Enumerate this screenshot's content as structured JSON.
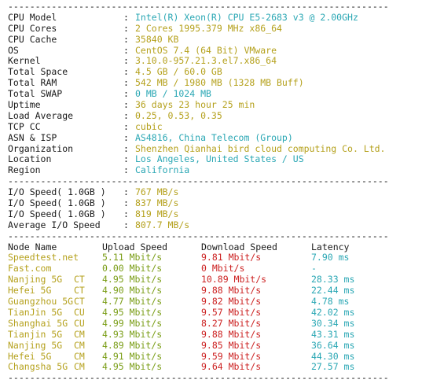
{
  "colors": {
    "label": "#1a1a1a",
    "cyan": "#2aa7b4",
    "yellow": "#b5a11d",
    "green": "#7a9d16",
    "red": "#cc2222"
  },
  "separator": "----------------------------------------------------------------------",
  "colon": ":",
  "info": [
    {
      "label": "CPU Model",
      "value": "Intel(R) Xeon(R) CPU E5-2683 v3 @ 2.00GHz",
      "color": "cyan"
    },
    {
      "label": "CPU Cores",
      "value": "2 Cores 1995.379 MHz x86_64",
      "color": "yellow"
    },
    {
      "label": "CPU Cache",
      "value": "35840 KB",
      "color": "yellow"
    },
    {
      "label": "OS",
      "value": "CentOS 7.4 (64 Bit) VMware",
      "color": "yellow"
    },
    {
      "label": "Kernel",
      "value": "3.10.0-957.21.3.el7.x86_64",
      "color": "yellow"
    },
    {
      "label": "Total Space",
      "value": "4.5 GB / 60.0 GB",
      "color": "yellow"
    },
    {
      "label": "Total RAM",
      "value": "542 MB / 1980 MB (1328 MB Buff)",
      "color": "yellow"
    },
    {
      "label": "Total SWAP",
      "value": "0 MB / 1024 MB",
      "color": "cyan"
    },
    {
      "label": "Uptime",
      "value": "36 days 23 hour 25 min",
      "color": "yellow"
    },
    {
      "label": "Load Average",
      "value": "0.25, 0.53, 0.35",
      "color": "yellow"
    },
    {
      "label": "TCP CC",
      "value": "cubic",
      "color": "yellow"
    },
    {
      "label": "ASN & ISP",
      "value": "AS4816, China Telecom (Group)",
      "color": "cyan"
    },
    {
      "label": "Organization",
      "value": "Shenzhen Qianhai bird cloud computing Co. Ltd.",
      "color": "yellow"
    },
    {
      "label": "Location",
      "value": "Los Angeles, United States / US",
      "color": "cyan"
    },
    {
      "label": "Region",
      "value": "California",
      "color": "cyan"
    }
  ],
  "io": [
    {
      "label": "I/O Speed( 1.0GB )",
      "value": "767 MB/s",
      "color": "yellow"
    },
    {
      "label": "I/O Speed( 1.0GB )",
      "value": "837 MB/s",
      "color": "yellow"
    },
    {
      "label": "I/O Speed( 1.0GB )",
      "value": "819 MB/s",
      "color": "yellow"
    },
    {
      "label": "Average I/O Speed",
      "value": "807.7 MB/s",
      "color": "yellow"
    }
  ],
  "speed": {
    "headers": [
      "Node Name",
      "Upload Speed",
      "Download Speed",
      "Latency"
    ],
    "rows": [
      {
        "node": "Speedtest.net",
        "isp": "",
        "upload": "5.11 Mbit/s",
        "download": "9.81 Mbit/s",
        "latency": "7.90 ms"
      },
      {
        "node": "Fast.com",
        "isp": "",
        "upload": "0.00 Mbit/s",
        "download": "0 Mbit/s",
        "latency": "-"
      },
      {
        "node": "Nanjing 5G",
        "isp": "CT",
        "upload": "4.95 Mbit/s",
        "download": "10.89 Mbit/s",
        "latency": "28.33 ms"
      },
      {
        "node": "Hefei 5G",
        "isp": "CT",
        "upload": "4.90 Mbit/s",
        "download": "9.88 Mbit/s",
        "latency": "22.44 ms"
      },
      {
        "node": "Guangzhou 5G",
        "isp": "CT",
        "upload": "4.77 Mbit/s",
        "download": "9.82 Mbit/s",
        "latency": "4.78 ms"
      },
      {
        "node": "TianJin 5G",
        "isp": "CU",
        "upload": "4.95 Mbit/s",
        "download": "9.57 Mbit/s",
        "latency": "42.02 ms"
      },
      {
        "node": "Shanghai 5G",
        "isp": "CU",
        "upload": "4.99 Mbit/s",
        "download": "8.27 Mbit/s",
        "latency": "30.34 ms"
      },
      {
        "node": "Tianjin 5G",
        "isp": "CM",
        "upload": "4.93 Mbit/s",
        "download": "9.88 Mbit/s",
        "latency": "43.31 ms"
      },
      {
        "node": "Nanjing 5G",
        "isp": "CM",
        "upload": "4.89 Mbit/s",
        "download": "9.85 Mbit/s",
        "latency": "36.64 ms"
      },
      {
        "node": "Hefei 5G",
        "isp": "CM",
        "upload": "4.91 Mbit/s",
        "download": "9.59 Mbit/s",
        "latency": "44.30 ms"
      },
      {
        "node": "Changsha 5G",
        "isp": "CM",
        "upload": "4.95 Mbit/s",
        "download": "9.64 Mbit/s",
        "latency": "27.57 ms"
      }
    ]
  }
}
